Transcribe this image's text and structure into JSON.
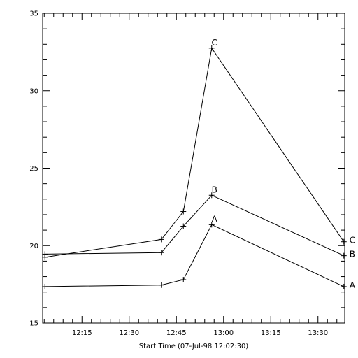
{
  "chart_data": {
    "type": "line",
    "title": "",
    "xlabel": "Start Time (07-Jul-98 12:02:30)",
    "ylabel": "",
    "xlim_minutes": [
      0,
      96
    ],
    "ylim": [
      15,
      35
    ],
    "x_ticks": [
      {
        "label": "12:15",
        "minutes": 12.5
      },
      {
        "label": "12:30",
        "minutes": 27.5
      },
      {
        "label": "12:45",
        "minutes": 42.5
      },
      {
        "label": "13:00",
        "minutes": 57.5
      },
      {
        "label": "13:15",
        "minutes": 72.5
      },
      {
        "label": "13:30",
        "minutes": 87.5
      }
    ],
    "y_ticks": [
      15,
      20,
      25,
      30,
      35
    ],
    "grid": false,
    "series": [
      {
        "name": "A",
        "times": [
          "12:03",
          "12:41",
          "12:48",
          "12:57",
          "13:39"
        ],
        "x": [
          1.5,
          38.5,
          45.5,
          54.5,
          96.5
        ],
        "y": [
          17.35,
          17.45,
          17.8,
          21.35,
          17.35
        ]
      },
      {
        "name": "B",
        "times": [
          "12:03",
          "12:41",
          "12:48",
          "12:57",
          "13:39"
        ],
        "x": [
          1.5,
          38.5,
          45.5,
          54.5,
          96.5
        ],
        "y": [
          19.45,
          19.55,
          21.25,
          23.25,
          19.35
        ]
      },
      {
        "name": "C",
        "times": [
          "12:03",
          "12:41",
          "12:48",
          "12:57",
          "13:39"
        ],
        "x": [
          1.5,
          38.5,
          45.5,
          54.5,
          96.5
        ],
        "y": [
          19.25,
          20.4,
          22.2,
          32.75,
          20.25
        ]
      }
    ]
  }
}
